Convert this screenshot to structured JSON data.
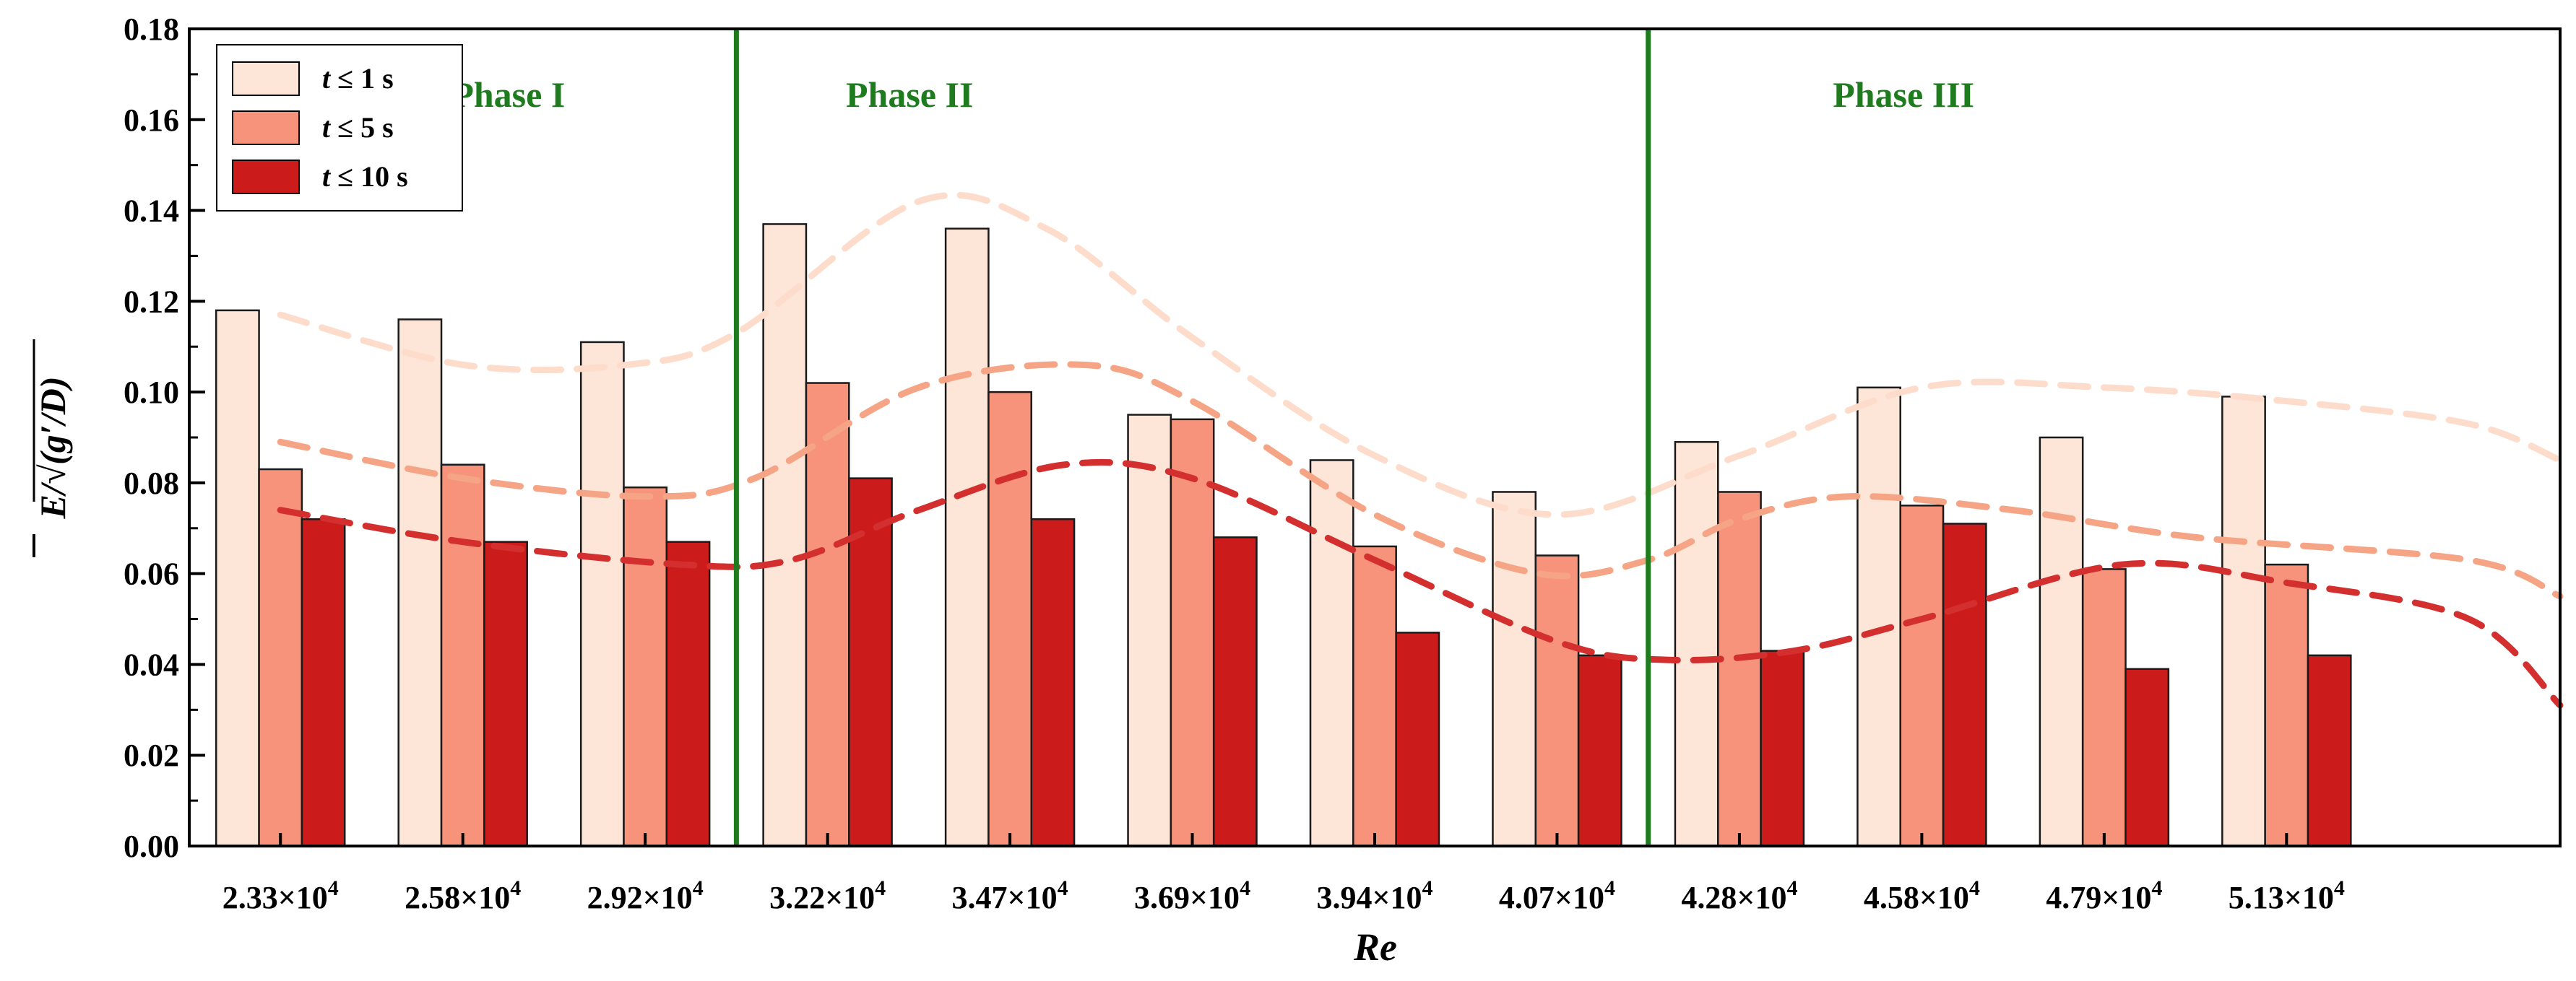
{
  "chart_data": {
    "type": "bar",
    "xlabel": "Re",
    "ylabel": {
      "symbol": "E",
      "rest": "/√(g′/D)"
    },
    "ylim": [
      0,
      0.18
    ],
    "yticks": [
      "0.00",
      "0.02",
      "0.04",
      "0.06",
      "0.08",
      "0.10",
      "0.12",
      "0.14",
      "0.16",
      "0.18"
    ],
    "categories": [
      {
        "mantissa": "2.33×10",
        "exp": "4"
      },
      {
        "mantissa": "2.58×10",
        "exp": "4"
      },
      {
        "mantissa": "2.92×10",
        "exp": "4"
      },
      {
        "mantissa": "3.22×10",
        "exp": "4"
      },
      {
        "mantissa": "3.47×10",
        "exp": "4"
      },
      {
        "mantissa": "3.69×10",
        "exp": "4"
      },
      {
        "mantissa": "3.94×10",
        "exp": "4"
      },
      {
        "mantissa": "4.07×10",
        "exp": "4"
      },
      {
        "mantissa": "4.28×10",
        "exp": "4"
      },
      {
        "mantissa": "4.58×10",
        "exp": "4"
      },
      {
        "mantissa": "4.79×10",
        "exp": "4"
      },
      {
        "mantissa": "5.13×10",
        "exp": "4"
      }
    ],
    "series": [
      {
        "name": "t ≤ 1 s",
        "legend_var": "t",
        "legend_rest": " ≤ 1 s",
        "color": "#FDE5D8",
        "values": [
          0.118,
          0.116,
          0.111,
          0.137,
          0.136,
          0.095,
          0.085,
          0.078,
          0.089,
          0.101,
          0.09,
          0.099
        ]
      },
      {
        "name": "t ≤ 5 s",
        "legend_var": "t",
        "legend_rest": " ≤ 5 s",
        "color": "#F6937A",
        "values": [
          0.083,
          0.084,
          0.079,
          0.102,
          0.1,
          0.094,
          0.066,
          0.064,
          0.078,
          0.075,
          0.061,
          0.062
        ]
      },
      {
        "name": "t ≤ 10 s",
        "legend_var": "t",
        "legend_rest": " ≤ 10 s",
        "color": "#CC1B1B",
        "values": [
          0.072,
          0.067,
          0.067,
          0.081,
          0.072,
          0.068,
          0.047,
          0.042,
          0.043,
          0.071,
          0.039,
          0.042
        ]
      }
    ],
    "trend_lines": [
      {
        "series": "t ≤ 1 s",
        "color": "#FDDCCB",
        "points": [
          [
            0,
            0.117
          ],
          [
            1,
            0.106
          ],
          [
            1.9,
            0.106
          ],
          [
            2.5,
            0.113
          ],
          [
            3.5,
            0.142
          ],
          [
            4.2,
            0.136
          ],
          [
            5,
            0.112
          ],
          [
            6,
            0.086
          ],
          [
            7,
            0.073
          ],
          [
            8,
            0.086
          ],
          [
            9,
            0.101
          ],
          [
            10,
            0.101
          ],
          [
            11,
            0.098
          ],
          [
            12,
            0.093
          ],
          [
            13,
            0.085
          ]
        ]
      },
      {
        "series": "t ≤ 5 s",
        "color": "#F5A585",
        "points": [
          [
            0,
            0.089
          ],
          [
            1,
            0.081
          ],
          [
            2,
            0.077
          ],
          [
            2.6,
            0.081
          ],
          [
            3.5,
            0.101
          ],
          [
            4.4,
            0.106
          ],
          [
            5,
            0.098
          ],
          [
            6,
            0.073
          ],
          [
            6.9,
            0.06
          ],
          [
            7.5,
            0.063
          ],
          [
            8,
            0.072
          ],
          [
            8.6,
            0.077
          ],
          [
            9.5,
            0.074
          ],
          [
            10.5,
            0.068
          ],
          [
            12,
            0.063
          ],
          [
            13,
            0.055
          ]
        ]
      },
      {
        "series": "t ≤ 10 s",
        "color": "#D42F2F",
        "points": [
          [
            0,
            0.074
          ],
          [
            1,
            0.067
          ],
          [
            2.2,
            0.062
          ],
          [
            2.8,
            0.063
          ],
          [
            3.5,
            0.074
          ],
          [
            4.3,
            0.084
          ],
          [
            5,
            0.081
          ],
          [
            6,
            0.063
          ],
          [
            7,
            0.045
          ],
          [
            7.6,
            0.041
          ],
          [
            8.3,
            0.043
          ],
          [
            9,
            0.05
          ],
          [
            10.1,
            0.062
          ],
          [
            11,
            0.058
          ],
          [
            12,
            0.05
          ],
          [
            13,
            0.031
          ]
        ]
      }
    ],
    "phase_dividers": [
      2.5,
      7.5
    ],
    "phase_labels": [
      {
        "text": "Phase I",
        "center": 1.25
      },
      {
        "text": "Phase II",
        "center": 3.45
      },
      {
        "text": "Phase III",
        "center": 8.9
      }
    ],
    "phase_color": "#1E7B1E",
    "legend_position": "top-left"
  }
}
